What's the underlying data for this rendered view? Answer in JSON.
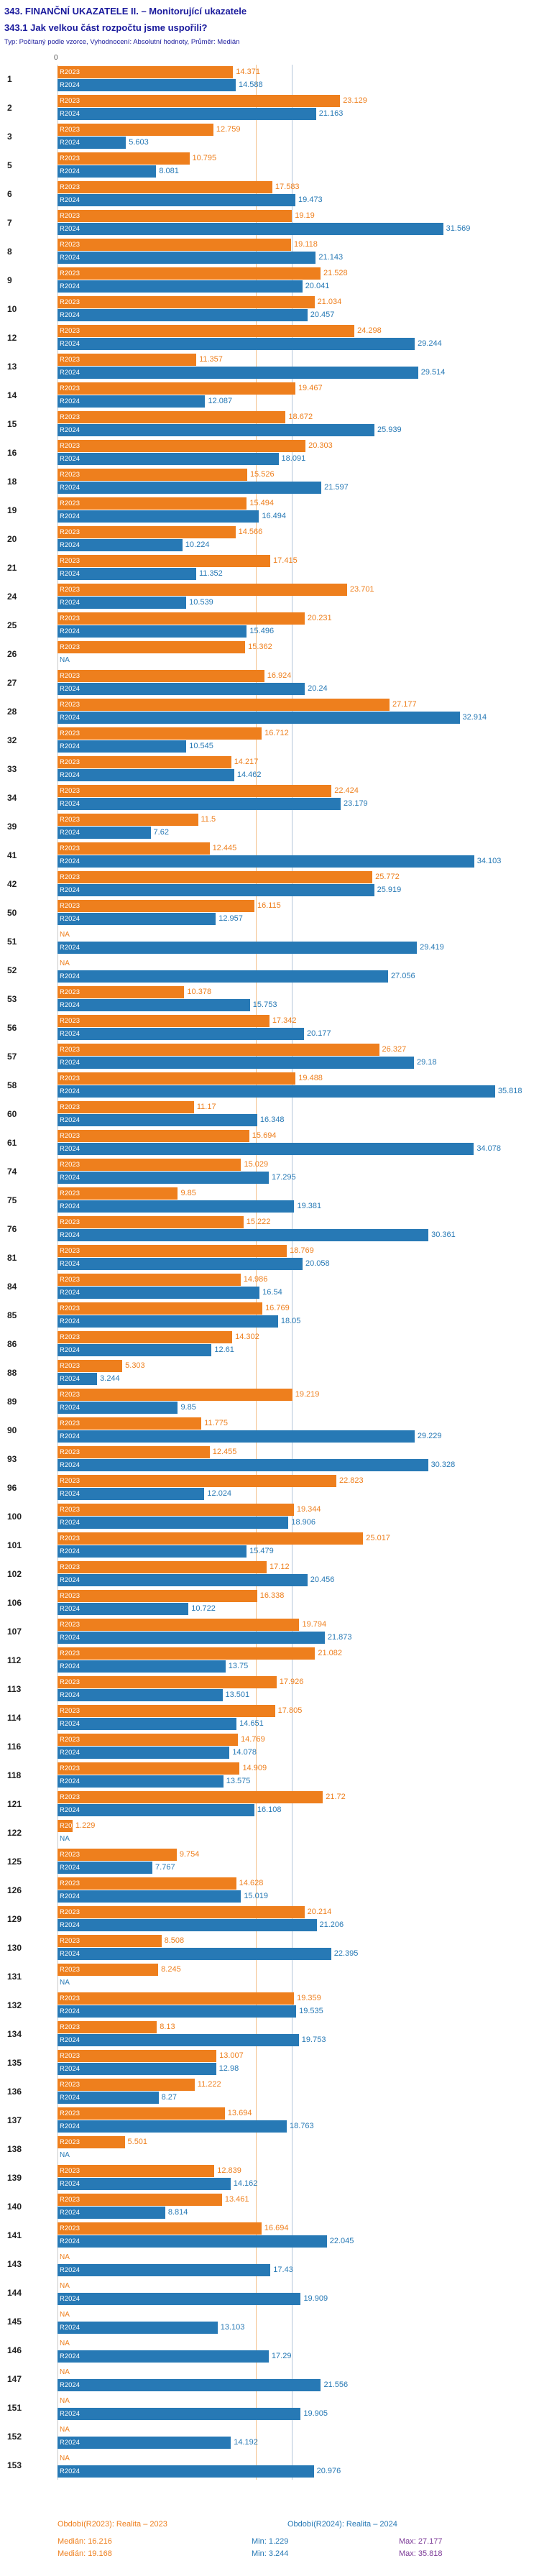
{
  "header": {
    "title": "343. FINANČNÍ UKAZATELE II. – Monitorující ukazatele",
    "subtitle": "343.1 Jak velkou část rozpočtu jsme uspořili?",
    "meta": "Typ: Počítaný podle vzorce, Vyhodnocení: Absolutní hodnoty, Průměr: Medián"
  },
  "colors": {
    "series_2023": "#EE7F1D",
    "series_2024": "#2779B5",
    "median_line_2023": "#F3C089",
    "median_line_2024": "#B4C6D9",
    "axis_line": "#C9C9C9",
    "stat_median": "#EE7F1D",
    "stat_min": "#2779B5",
    "stat_max": "#7D3C98",
    "title_text": "#1A1A9C"
  },
  "chart_data": {
    "type": "bar",
    "orientation": "horizontal",
    "value_axis": {
      "origin_label": "0",
      "min": 0,
      "max_hint": 36
    },
    "legend_position": "bottom",
    "series": [
      {
        "key": "v2023",
        "tag": "R2023",
        "legend": "Období(R2023): Realita – 2023",
        "color": "#EE7F1D",
        "median": 16.216,
        "min": 1.229,
        "max": 27.177
      },
      {
        "key": "v2024",
        "tag": "R2024",
        "legend": "Období(R2024): Realita – 2024",
        "color": "#2779B5",
        "median": 19.168,
        "min": 3.244,
        "max": 35.818
      }
    ],
    "rows": [
      {
        "id": "1",
        "v2023": "14.371",
        "v2024": "14.588"
      },
      {
        "id": "2",
        "v2023": "23.129",
        "v2024": "21.163"
      },
      {
        "id": "3",
        "v2023": "12.759",
        "v2024": "5.603"
      },
      {
        "id": "5",
        "v2023": "10.795",
        "v2024": "8.081"
      },
      {
        "id": "6",
        "v2023": "17.583",
        "v2024": "19.473"
      },
      {
        "id": "7",
        "v2023": "19.19",
        "v2024": "31.569"
      },
      {
        "id": "8",
        "v2023": "19.118",
        "v2024": "21.143"
      },
      {
        "id": "9",
        "v2023": "21.528",
        "v2024": "20.041"
      },
      {
        "id": "10",
        "v2023": "21.034",
        "v2024": "20.457"
      },
      {
        "id": "12",
        "v2023": "24.298",
        "v2024": "29.244"
      },
      {
        "id": "13",
        "v2023": "11.357",
        "v2024": "29.514"
      },
      {
        "id": "14",
        "v2023": "19.467",
        "v2024": "12.087"
      },
      {
        "id": "15",
        "v2023": "18.672",
        "v2024": "25.939"
      },
      {
        "id": "16",
        "v2023": "20.303",
        "v2024": "18.091"
      },
      {
        "id": "18",
        "v2023": "15.526",
        "v2024": "21.597"
      },
      {
        "id": "19",
        "v2023": "15.494",
        "v2024": "16.494"
      },
      {
        "id": "20",
        "v2023": "14.566",
        "v2024": "10.224"
      },
      {
        "id": "21",
        "v2023": "17.415",
        "v2024": "11.352"
      },
      {
        "id": "24",
        "v2023": "23.701",
        "v2024": "10.539"
      },
      {
        "id": "25",
        "v2023": "20.231",
        "v2024": "15.496"
      },
      {
        "id": "26",
        "v2023": "15.362",
        "v2024": "NA"
      },
      {
        "id": "27",
        "v2023": "16.924",
        "v2024": "20.24"
      },
      {
        "id": "28",
        "v2023": "27.177",
        "v2024": "32.914"
      },
      {
        "id": "32",
        "v2023": "16.712",
        "v2024": "10.545"
      },
      {
        "id": "33",
        "v2023": "14.217",
        "v2024": "14.462"
      },
      {
        "id": "34",
        "v2023": "22.424",
        "v2024": "23.179"
      },
      {
        "id": "39",
        "v2023": "11.5",
        "v2024": "7.62"
      },
      {
        "id": "41",
        "v2023": "12.445",
        "v2024": "34.103"
      },
      {
        "id": "42",
        "v2023": "25.772",
        "v2024": "25.919"
      },
      {
        "id": "50",
        "v2023": "16.115",
        "v2024": "12.957"
      },
      {
        "id": "51",
        "v2023": "NA",
        "v2024": "29.419"
      },
      {
        "id": "52",
        "v2023": "NA",
        "v2024": "27.056"
      },
      {
        "id": "53",
        "v2023": "10.378",
        "v2024": "15.753"
      },
      {
        "id": "56",
        "v2023": "17.342",
        "v2024": "20.177"
      },
      {
        "id": "57",
        "v2023": "26.327",
        "v2024": "29.18"
      },
      {
        "id": "58",
        "v2023": "19.488",
        "v2024": "35.818"
      },
      {
        "id": "60",
        "v2023": "11.17",
        "v2024": "16.348"
      },
      {
        "id": "61",
        "v2023": "15.694",
        "v2024": "34.078"
      },
      {
        "id": "74",
        "v2023": "15.029",
        "v2024": "17.295"
      },
      {
        "id": "75",
        "v2023": "9.85",
        "v2024": "19.381"
      },
      {
        "id": "76",
        "v2023": "15.222",
        "v2024": "30.361"
      },
      {
        "id": "81",
        "v2023": "18.769",
        "v2024": "20.058"
      },
      {
        "id": "84",
        "v2023": "14.986",
        "v2024": "16.54"
      },
      {
        "id": "85",
        "v2023": "16.769",
        "v2024": "18.05"
      },
      {
        "id": "86",
        "v2023": "14.302",
        "v2024": "12.61"
      },
      {
        "id": "88",
        "v2023": "5.303",
        "v2024": "3.244"
      },
      {
        "id": "89",
        "v2023": "19.219",
        "v2024": "9.85"
      },
      {
        "id": "90",
        "v2023": "11.775",
        "v2024": "29.229"
      },
      {
        "id": "93",
        "v2023": "12.455",
        "v2024": "30.328"
      },
      {
        "id": "96",
        "v2023": "22.823",
        "v2024": "12.024"
      },
      {
        "id": "100",
        "v2023": "19.344",
        "v2024": "18.906"
      },
      {
        "id": "101",
        "v2023": "25.017",
        "v2024": "15.479"
      },
      {
        "id": "102",
        "v2023": "17.12",
        "v2024": "20.456"
      },
      {
        "id": "106",
        "v2023": "16.338",
        "v2024": "10.722"
      },
      {
        "id": "107",
        "v2023": "19.794",
        "v2024": "21.873"
      },
      {
        "id": "112",
        "v2023": "21.082",
        "v2024": "13.75"
      },
      {
        "id": "113",
        "v2023": "17.926",
        "v2024": "13.501"
      },
      {
        "id": "114",
        "v2023": "17.805",
        "v2024": "14.651"
      },
      {
        "id": "116",
        "v2023": "14.769",
        "v2024": "14.078"
      },
      {
        "id": "118",
        "v2023": "14.909",
        "v2024": "13.575"
      },
      {
        "id": "121",
        "v2023": "21.72",
        "v2024": "16.108"
      },
      {
        "id": "122",
        "v2023": "1.229",
        "v2024": "NA"
      },
      {
        "id": "125",
        "v2023": "9.754",
        "v2024": "7.767"
      },
      {
        "id": "126",
        "v2023": "14.628",
        "v2024": "15.019"
      },
      {
        "id": "129",
        "v2023": "20.214",
        "v2024": "21.206"
      },
      {
        "id": "130",
        "v2023": "8.508",
        "v2024": "22.395"
      },
      {
        "id": "131",
        "v2023": "8.245",
        "v2024": "NA"
      },
      {
        "id": "132",
        "v2023": "19.359",
        "v2024": "19.535"
      },
      {
        "id": "134",
        "v2023": "8.13",
        "v2024": "19.753"
      },
      {
        "id": "135",
        "v2023": "13.007",
        "v2024": "12.98"
      },
      {
        "id": "136",
        "v2023": "11.222",
        "v2024": "8.27"
      },
      {
        "id": "137",
        "v2023": "13.694",
        "v2024": "18.763"
      },
      {
        "id": "138",
        "v2023": "5.501",
        "v2024": "NA"
      },
      {
        "id": "139",
        "v2023": "12.839",
        "v2024": "14.162"
      },
      {
        "id": "140",
        "v2023": "13.461",
        "v2024": "8.814"
      },
      {
        "id": "141",
        "v2023": "16.694",
        "v2024": "22.045"
      },
      {
        "id": "143",
        "v2023": "NA",
        "v2024": "17.43"
      },
      {
        "id": "144",
        "v2023": "NA",
        "v2024": "19.909"
      },
      {
        "id": "145",
        "v2023": "NA",
        "v2024": "13.103"
      },
      {
        "id": "146",
        "v2023": "NA",
        "v2024": "17.29"
      },
      {
        "id": "147",
        "v2023": "NA",
        "v2024": "21.556"
      },
      {
        "id": "151",
        "v2023": "NA",
        "v2024": "19.905"
      },
      {
        "id": "152",
        "v2023": "NA",
        "v2024": "14.192"
      },
      {
        "id": "153",
        "v2023": "NA",
        "v2024": "20.976"
      }
    ]
  },
  "footer": {
    "stats_rows": [
      {
        "median": "Medián: 16.216",
        "min": "Min: 1.229",
        "max": "Max: 27.177"
      },
      {
        "median": "Medián: 19.168",
        "min": "Min: 3.244",
        "max": "Max: 35.818"
      }
    ]
  }
}
